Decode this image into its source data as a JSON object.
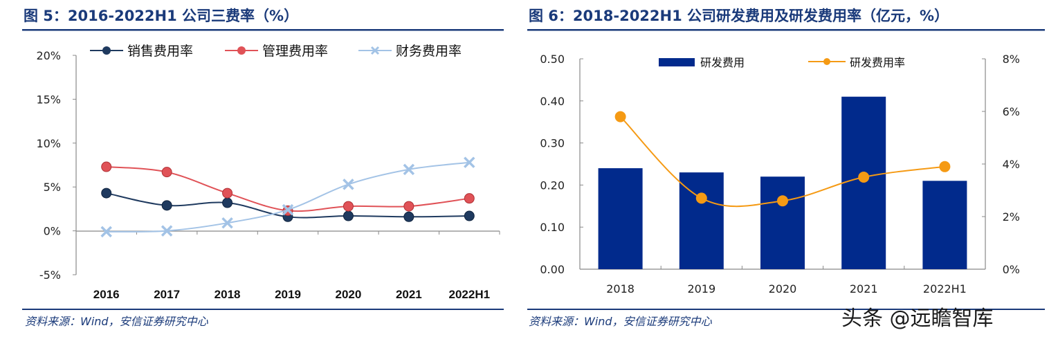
{
  "colors": {
    "title": "#1a3a7a",
    "sales": "#1f3a5f",
    "mgmt": "#e05257",
    "fin": "#a3c3e6",
    "bar": "#012a8c",
    "rate": "#f59a14"
  },
  "watermark": "头条 @远瞻智库",
  "chart_data": [
    {
      "type": "line",
      "title": "图 5：2016-2022H1 公司三费率（%）",
      "source": "资料来源：Wind，安信证券研究中心",
      "categories": [
        "2016",
        "2017",
        "2018",
        "2019",
        "2020",
        "2021",
        "2022H1"
      ],
      "ylim": [
        -5,
        20
      ],
      "yticks": [
        "20%",
        "15%",
        "10%",
        "5%",
        "0%",
        "-5%"
      ],
      "ytick_values": [
        20,
        15,
        10,
        5,
        0,
        -5
      ],
      "legend_position": "top",
      "grid": false,
      "series": [
        {
          "name": "销售费用率",
          "marker": "circle",
          "values": [
            4.3,
            2.9,
            3.2,
            1.6,
            1.7,
            1.6,
            1.7
          ]
        },
        {
          "name": "管理费用率",
          "marker": "circle",
          "values": [
            7.3,
            6.7,
            4.3,
            2.3,
            2.8,
            2.8,
            3.7
          ]
        },
        {
          "name": "财务费用率",
          "marker": "x",
          "values": [
            -0.1,
            0.0,
            0.9,
            2.4,
            5.3,
            7.0,
            7.8
          ]
        }
      ]
    },
    {
      "type": "bar+line",
      "title": "图 6：2018-2022H1 公司研发费用及研发费用率（亿元，%）",
      "source": "资料来源：Wind，安信证券研究中心",
      "categories": [
        "2018",
        "2019",
        "2020",
        "2021",
        "2022H1"
      ],
      "ylim_left": [
        0,
        0.5
      ],
      "yticks_left": [
        "0.50",
        "0.40",
        "0.30",
        "0.20",
        "0.10",
        "0.00"
      ],
      "ytick_left_values": [
        0.5,
        0.4,
        0.3,
        0.2,
        0.1,
        0
      ],
      "ylim_right": [
        0,
        8
      ],
      "yticks_right": [
        "8%",
        "6%",
        "4%",
        "2%",
        "0%"
      ],
      "ytick_right_values": [
        8,
        6,
        4,
        2,
        0
      ],
      "legend_position": "top",
      "grid": false,
      "series": [
        {
          "name": "研发费用",
          "type": "bar",
          "axis": "left",
          "values": [
            0.24,
            0.23,
            0.22,
            0.41,
            0.21
          ]
        },
        {
          "name": "研发费用率",
          "type": "line",
          "axis": "right",
          "values": [
            5.8,
            2.7,
            2.6,
            3.5,
            3.9
          ]
        }
      ]
    }
  ]
}
